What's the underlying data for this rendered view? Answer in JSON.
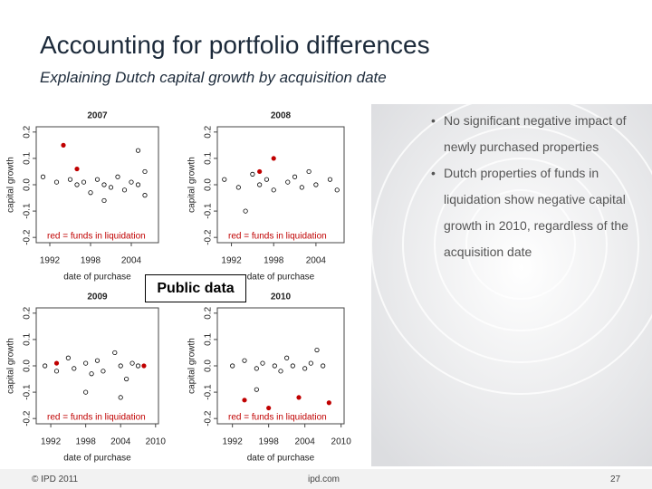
{
  "header": {
    "title": "Accounting for portfolio differences",
    "subtitle": "Explaining Dutch capital growth by acquisition date"
  },
  "bullets": [
    "No significant negative impact of newly purchased properties",
    "Dutch properties of funds in liquidation show negative capital growth in 2010, regardless of the acquisition date"
  ],
  "callout": "Public data",
  "footer": {
    "copyright": "© IPD 2011",
    "site": "ipd.com",
    "page": "27"
  },
  "chart_data": [
    {
      "type": "scatter",
      "title": "2007",
      "x_label": "date of purchase",
      "y_label": "capital growth",
      "legend_text": "red = funds in liquidation",
      "xlim": [
        1990,
        2008
      ],
      "xticks": [
        1992,
        1998,
        2004
      ],
      "ylim": [
        -0.22,
        0.22
      ],
      "yticks": [
        -0.2,
        -0.1,
        {
          "value": 0,
          "label": "0.0"
        },
        0.1,
        0.2
      ],
      "series": [
        {
          "color": "#000000",
          "x": [
            1991,
            1993,
            1995,
            1996,
            1997,
            1998,
            1999,
            2000,
            2001,
            2002,
            2003,
            2004,
            2005,
            2006,
            2006,
            2005,
            2000
          ],
          "values": [
            0.03,
            0.01,
            0.02,
            0,
            0.01,
            -0.03,
            0.02,
            0,
            -0.01,
            0.03,
            -0.02,
            0.01,
            0,
            0.05,
            -0.04,
            0.13,
            -0.06
          ]
        },
        {
          "color": "#c00000",
          "x": [
            1994,
            1996
          ],
          "values": [
            0.15,
            0.06
          ]
        }
      ]
    },
    {
      "type": "scatter",
      "title": "2008",
      "x_label": "date of purchase",
      "y_label": "capital growth",
      "legend_text": "red = funds in liquidation",
      "xlim": [
        1990,
        2008
      ],
      "xticks": [
        1992,
        1998,
        2004
      ],
      "ylim": [
        -0.22,
        0.22
      ],
      "yticks": [
        -0.2,
        -0.1,
        {
          "value": 0,
          "label": "0.0"
        },
        0.1,
        0.2
      ],
      "series": [
        {
          "color": "#000000",
          "x": [
            1991,
            1993,
            1995,
            1996,
            1997,
            1998,
            2000,
            2001,
            2002,
            2003,
            2004,
            2006,
            2007,
            1994
          ],
          "values": [
            0.02,
            -0.01,
            0.04,
            0,
            0.02,
            -0.02,
            0.01,
            0.03,
            -0.01,
            0.05,
            0,
            0.02,
            -0.02,
            -0.1
          ]
        },
        {
          "color": "#c00000",
          "x": [
            1998,
            1996
          ],
          "values": [
            0.1,
            0.05
          ]
        }
      ]
    },
    {
      "type": "scatter",
      "title": "2009",
      "x_label": "date of purchase",
      "y_label": "capital growth",
      "legend_text": "red = funds in liquidation",
      "xlim": [
        1989.5,
        2010.5
      ],
      "xticks": [
        1992,
        1998,
        2004,
        2010
      ],
      "ylim": [
        -0.22,
        0.22
      ],
      "yticks": [
        -0.2,
        -0.1,
        {
          "value": 0,
          "label": "0.0"
        },
        0.1,
        0.2
      ],
      "series": [
        {
          "color": "#000000",
          "x": [
            1991,
            1993,
            1995,
            1996,
            1998,
            1999,
            2000,
            2001,
            2003,
            2004,
            2005,
            2006,
            2007,
            1998,
            2004
          ],
          "values": [
            0,
            -0.02,
            0.03,
            -0.01,
            0.01,
            -0.03,
            0.02,
            -0.02,
            0.05,
            0,
            -0.05,
            0.01,
            0,
            -0.1,
            -0.12
          ]
        },
        {
          "color": "#c00000",
          "x": [
            1993,
            2008
          ],
          "values": [
            0.01,
            0
          ]
        }
      ]
    },
    {
      "type": "scatter",
      "title": "2010",
      "x_label": "date of purchase",
      "y_label": "capital growth",
      "legend_text": "red = funds in liquidation",
      "xlim": [
        1989.5,
        2010.5
      ],
      "xticks": [
        1992,
        1998,
        2004,
        2010
      ],
      "ylim": [
        -0.22,
        0.22
      ],
      "yticks": [
        -0.2,
        -0.1,
        {
          "value": 0,
          "label": "0.0"
        },
        0.1,
        0.2
      ],
      "series": [
        {
          "color": "#000000",
          "x": [
            1992,
            1994,
            1996,
            1997,
            1999,
            2000,
            2001,
            2002,
            2004,
            2005,
            2007,
            2006,
            1996
          ],
          "values": [
            0,
            0.02,
            -0.01,
            0.01,
            0,
            -0.02,
            0.03,
            0,
            -0.01,
            0.01,
            0,
            0.06,
            -0.09
          ]
        },
        {
          "color": "#c00000",
          "x": [
            1994,
            1998,
            2003,
            2008
          ],
          "values": [
            -0.13,
            -0.16,
            -0.12,
            -0.14
          ]
        }
      ]
    }
  ]
}
